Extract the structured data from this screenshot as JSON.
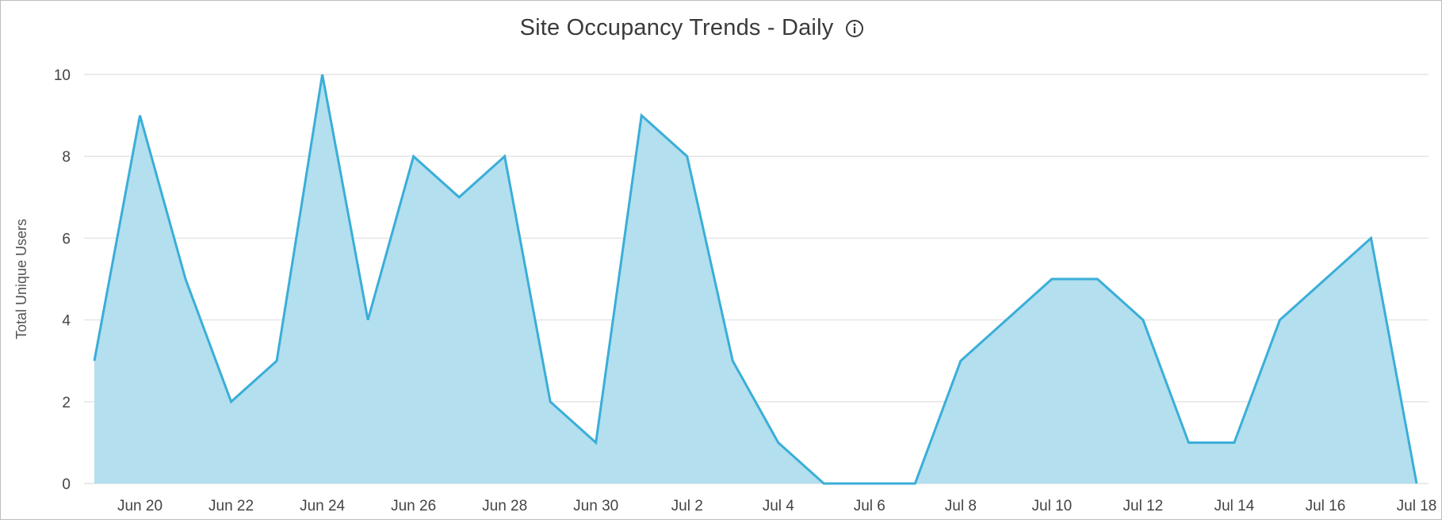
{
  "chart_data": {
    "type": "area",
    "title": "Site Occupancy Trends - Daily",
    "xlabel": "",
    "ylabel": "Total Unique Users",
    "x": [
      "Jun 19",
      "Jun 20",
      "Jun 21",
      "Jun 22",
      "Jun 23",
      "Jun 24",
      "Jun 25",
      "Jun 26",
      "Jun 27",
      "Jun 28",
      "Jun 29",
      "Jun 30",
      "Jul 1",
      "Jul 2",
      "Jul 3",
      "Jul 4",
      "Jul 5",
      "Jul 6",
      "Jul 7",
      "Jul 8",
      "Jul 9",
      "Jul 10",
      "Jul 11",
      "Jul 12",
      "Jul 13",
      "Jul 14",
      "Jul 15",
      "Jul 16",
      "Jul 17",
      "Jul 18"
    ],
    "values": [
      3,
      9,
      5,
      2,
      3,
      10,
      4,
      8,
      7,
      8,
      2,
      1,
      9,
      8,
      3,
      1,
      0,
      0,
      0,
      3,
      4,
      5,
      5,
      4,
      1,
      1,
      4,
      5,
      6,
      0
    ],
    "x_tick_labels": [
      "Jun 20",
      "Jun 22",
      "Jun 24",
      "Jun 26",
      "Jun 28",
      "Jun 30",
      "Jul 2",
      "Jul 4",
      "Jul 6",
      "Jul 8",
      "Jul 10",
      "Jul 12",
      "Jul 14",
      "Jul 16",
      "Jul 18"
    ],
    "y_ticks": [
      0,
      2,
      4,
      6,
      8,
      10
    ],
    "ylim": [
      0,
      10
    ],
    "grid": true,
    "legend": "none",
    "line_color": "#3aaed8",
    "fill_color": "#b3dfee",
    "grid_color": "#e3e3e3"
  },
  "header": {
    "info_icon": "info-icon"
  }
}
